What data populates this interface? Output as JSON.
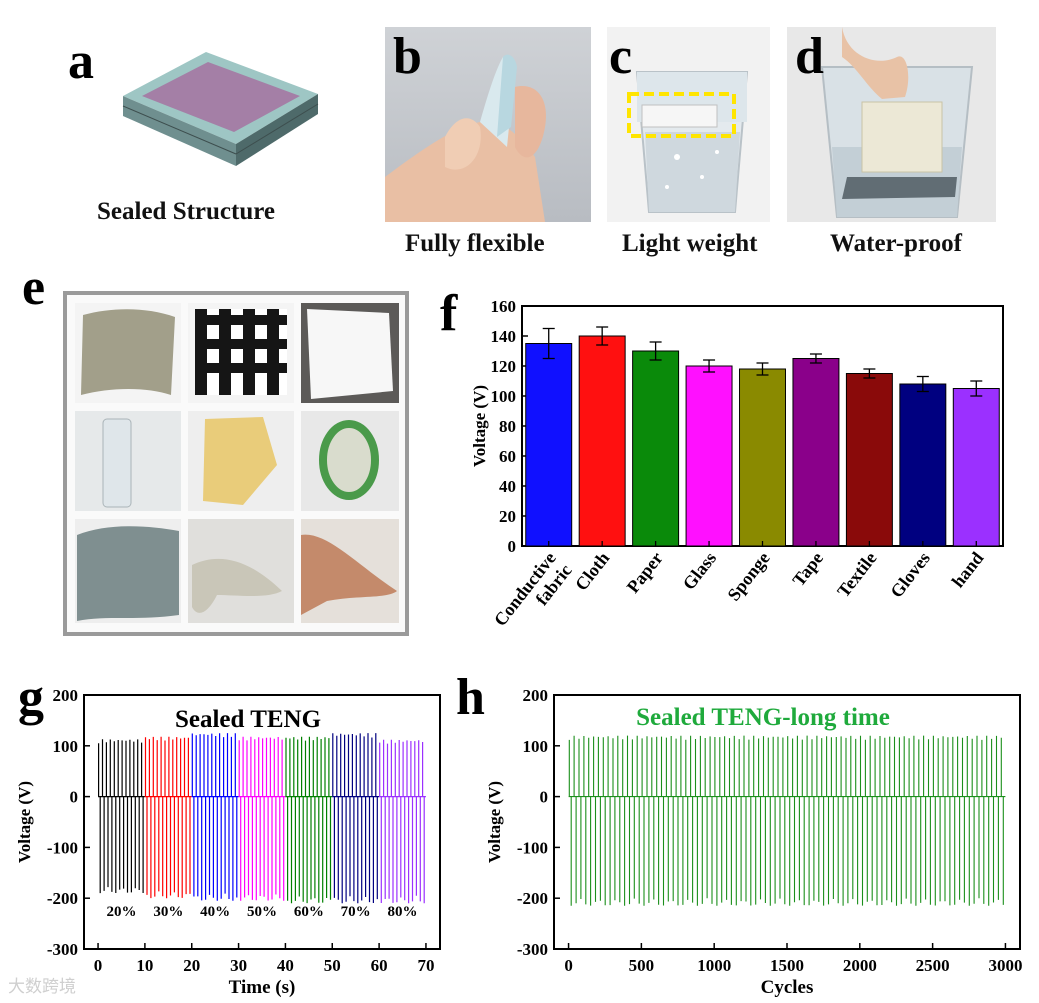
{
  "panels": {
    "a": {
      "letter": "a",
      "caption": "Sealed Structure"
    },
    "b": {
      "letter": "b",
      "caption": "Fully flexible"
    },
    "c": {
      "letter": "c",
      "caption": "Light weight"
    },
    "d": {
      "letter": "d",
      "caption": "Water-proof"
    },
    "e": {
      "letter": "e"
    },
    "f": {
      "letter": "f"
    },
    "g": {
      "letter": "g"
    },
    "h": {
      "letter": "h"
    }
  },
  "chart_data": [
    {
      "id": "f",
      "type": "bar",
      "ylabel": "Voltage (V)",
      "ylim": [
        0,
        160
      ],
      "yticks": [
        0,
        20,
        40,
        60,
        80,
        100,
        120,
        140,
        160
      ],
      "categories": [
        "Conductive fabric",
        "Cloth",
        "Paper",
        "Glass",
        "Sponge",
        "Tape",
        "Textile",
        "Gloves",
        "hand"
      ],
      "category_lines": [
        [
          "Conductive",
          "fabric"
        ],
        [
          "Cloth"
        ],
        [
          "Paper"
        ],
        [
          "Glass"
        ],
        [
          "Sponge"
        ],
        [
          "Tape"
        ],
        [
          "Textile"
        ],
        [
          "Gloves"
        ],
        [
          "hand"
        ]
      ],
      "values": [
        135,
        140,
        130,
        120,
        118,
        125,
        115,
        108,
        105
      ],
      "errors": [
        10,
        6,
        6,
        4,
        4,
        3,
        3,
        5,
        5
      ],
      "colors": [
        "#1010ff",
        "#ff1010",
        "#0a8a0a",
        "#ff10ff",
        "#8a8a00",
        "#8a008a",
        "#8a0a0a",
        "#000080",
        "#9b30ff"
      ]
    },
    {
      "id": "g",
      "type": "line",
      "title": "Sealed TENG",
      "xlabel": "Time (s)",
      "ylabel": "Voltage (V)",
      "xlim": [
        -3,
        73
      ],
      "ylim": [
        -300,
        200
      ],
      "xticks": [
        0,
        10,
        20,
        30,
        40,
        50,
        60,
        70
      ],
      "yticks": [
        -300,
        -200,
        -100,
        0,
        100,
        200
      ],
      "series": [
        {
          "name": "20%",
          "range": [
            0,
            10
          ],
          "peak": 113,
          "trough": -190,
          "color": "#000000"
        },
        {
          "name": "30%",
          "range": [
            10,
            20
          ],
          "peak": 118,
          "trough": -200,
          "color": "#ff0000"
        },
        {
          "name": "40%",
          "range": [
            20,
            30
          ],
          "peak": 125,
          "trough": -205,
          "color": "#0000ff"
        },
        {
          "name": "50%",
          "range": [
            30,
            40
          ],
          "peak": 118,
          "trough": -205,
          "color": "#ff00ff"
        },
        {
          "name": "60%",
          "range": [
            40,
            50
          ],
          "peak": 118,
          "trough": -210,
          "color": "#008000"
        },
        {
          "name": "70%",
          "range": [
            50,
            60
          ],
          "peak": 125,
          "trough": -210,
          "color": "#000080"
        },
        {
          "name": "80%",
          "range": [
            60,
            70
          ],
          "peak": 112,
          "trough": -210,
          "color": "#9b30ff"
        }
      ]
    },
    {
      "id": "h",
      "type": "line",
      "title": "Sealed TENG-long time",
      "xlabel": "Cycles",
      "ylabel": "Voltage (V)",
      "xlim": [
        -100,
        3100
      ],
      "ylim": [
        -300,
        200
      ],
      "xticks": [
        0,
        500,
        1000,
        1500,
        2000,
        2500,
        3000
      ],
      "yticks": [
        -300,
        -200,
        -100,
        0,
        100,
        200
      ],
      "series": [
        {
          "name": "Sealed TENG-long time",
          "range": [
            0,
            3000
          ],
          "peak": 120,
          "trough": -215,
          "color": "#1b8f1b"
        }
      ]
    }
  ],
  "colors": {
    "title_green": "#1faa3c"
  },
  "watermark": "大数跨境"
}
